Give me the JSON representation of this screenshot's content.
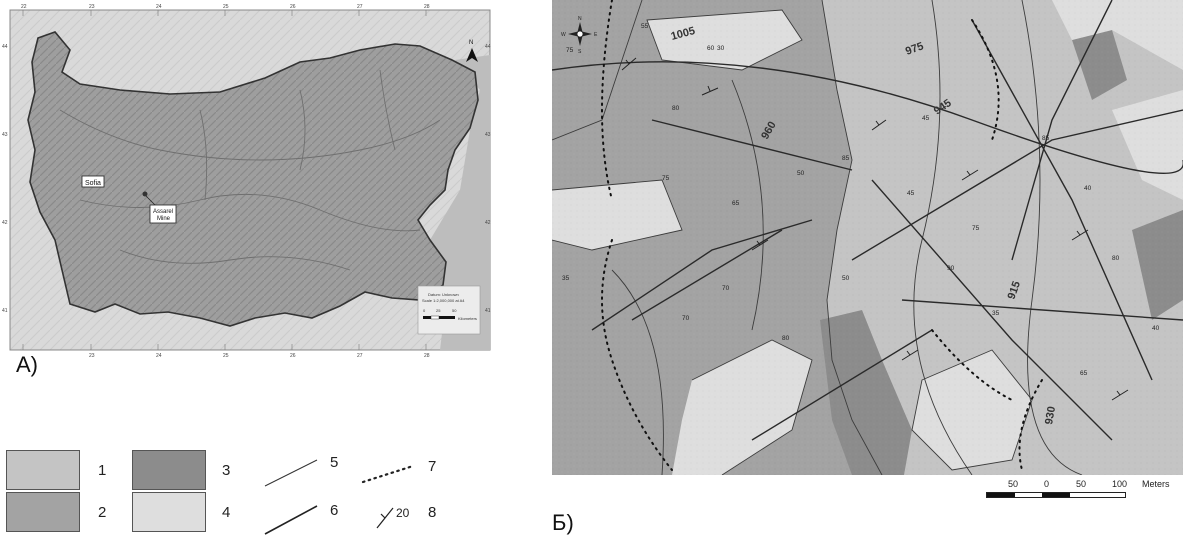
{
  "mapA": {
    "label": "А)",
    "city_label": "Sofia",
    "mine_label_line1": "Assarel",
    "mine_label_line2": "Mine",
    "north_label": "N",
    "datum_line1": "Datum: Unknown",
    "datum_line2": "Scale 1:2,000,000 at A4",
    "scale_ticks": [
      "0",
      "25",
      "50"
    ],
    "scale_unit": "Kilometers",
    "lon_ticks": [
      "22",
      "23",
      "24",
      "25",
      "26",
      "27",
      "28"
    ],
    "lat_ticks": [
      "44",
      "43",
      "42",
      "41"
    ],
    "colors": {
      "land": "#9a9a9a",
      "outside": "#d6d6d6",
      "sea": "#bcbcbc",
      "border": "#333333"
    }
  },
  "mapB": {
    "label": "Б)",
    "contour_labels": [
      "1005",
      "975",
      "960",
      "945",
      "930",
      "915"
    ],
    "dip_labels": [
      "55",
      "60",
      "30",
      "75",
      "80",
      "85",
      "65",
      "70",
      "45",
      "35",
      "40",
      "90",
      "50"
    ],
    "compass_letters": [
      "N",
      "E",
      "S",
      "W"
    ],
    "scale_ticks": [
      "50",
      "0",
      "50",
      "100"
    ],
    "scale_unit": "Meters",
    "colors": {
      "unit1": "#c4c4c4",
      "unit2": "#a3a3a3",
      "unit3": "#8c8c8c",
      "unit4": "#dedede"
    }
  },
  "legend": {
    "items": [
      {
        "num": "1",
        "kind": "swatch",
        "color": "#c4c4c4"
      },
      {
        "num": "2",
        "kind": "swatch",
        "color": "#a3a3a3"
      },
      {
        "num": "3",
        "kind": "swatch",
        "color": "#8c8c8c"
      },
      {
        "num": "4",
        "kind": "swatch",
        "color": "#dedede"
      },
      {
        "num": "5",
        "kind": "line-thin"
      },
      {
        "num": "6",
        "kind": "line-thick"
      },
      {
        "num": "7",
        "kind": "dotted"
      },
      {
        "num": "8",
        "kind": "dip-symbol"
      }
    ],
    "dip_symbol_value": "20"
  }
}
